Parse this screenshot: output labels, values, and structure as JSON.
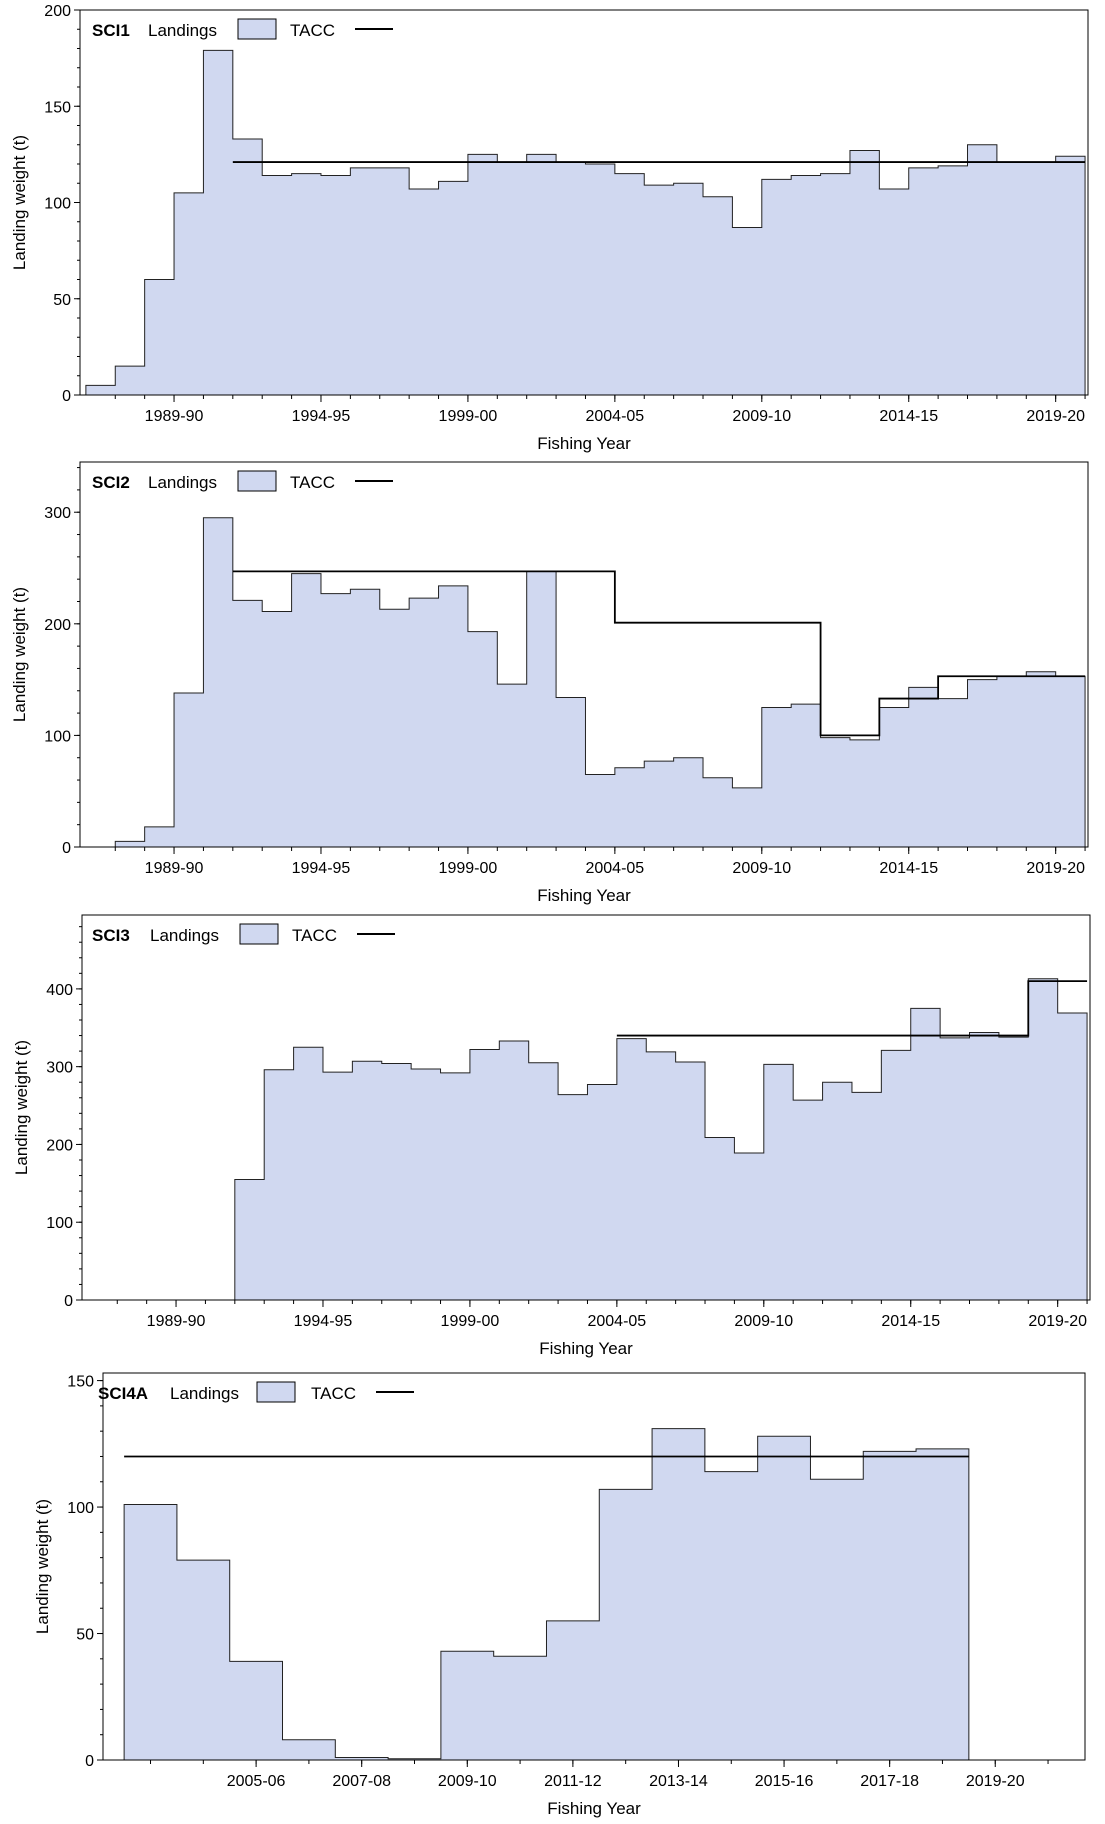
{
  "chart_data": [
    {
      "type": "area",
      "title": "SCI1",
      "xlabel": "Fishing Year",
      "ylabel": "Landing weight (t)",
      "ylim": [
        0,
        200
      ],
      "xlim": [
        1986.3,
        2020.6
      ],
      "yticks": [
        0,
        50,
        100,
        150,
        200
      ],
      "xticks": [
        {
          "pos": 1989.5,
          "label": "1989-90"
        },
        {
          "pos": 1994.5,
          "label": "1994-95"
        },
        {
          "pos": 1999.5,
          "label": "1999-00"
        },
        {
          "pos": 2004.5,
          "label": "2004-05"
        },
        {
          "pos": 2009.5,
          "label": "2009-10"
        },
        {
          "pos": 2014.5,
          "label": "2014-15"
        },
        {
          "pos": 2019.5,
          "label": "2019-20"
        }
      ],
      "legend": [
        {
          "label": "Landings",
          "kind": "fill"
        },
        {
          "label": "TACC",
          "kind": "line"
        }
      ],
      "colors": {
        "landings_fill": "#d0d8f0",
        "tacc_line": "#000000"
      },
      "x_start": 1986.5,
      "landings": [
        5,
        15,
        60,
        105,
        179,
        133,
        114,
        115,
        114,
        118,
        118,
        107,
        111,
        125,
        121,
        125,
        121,
        120,
        115,
        109,
        110,
        103,
        87,
        112,
        114,
        115,
        127,
        107,
        118,
        119,
        130,
        121,
        121,
        124
      ],
      "tacc": [
        {
          "x0": 1991.5,
          "x1": 2020.5,
          "y": 121
        }
      ]
    },
    {
      "type": "area",
      "title": "SCI2",
      "xlabel": "Fishing Year",
      "ylabel": "Landing weight (t)",
      "ylim": [
        0,
        345
      ],
      "xlim": [
        1986.3,
        2020.6
      ],
      "yticks": [
        0,
        100,
        200,
        300
      ],
      "xticks": [
        {
          "pos": 1989.5,
          "label": "1989-90"
        },
        {
          "pos": 1994.5,
          "label": "1994-95"
        },
        {
          "pos": 1999.5,
          "label": "1999-00"
        },
        {
          "pos": 2004.5,
          "label": "2004-05"
        },
        {
          "pos": 2009.5,
          "label": "2009-10"
        },
        {
          "pos": 2014.5,
          "label": "2014-15"
        },
        {
          "pos": 2019.5,
          "label": "2019-20"
        }
      ],
      "legend": [
        {
          "label": "Landings",
          "kind": "fill"
        },
        {
          "label": "TACC",
          "kind": "line"
        }
      ],
      "colors": {
        "landings_fill": "#d0d8f0",
        "tacc_line": "#000000"
      },
      "x_start": 1987.5,
      "landings": [
        5,
        18,
        138,
        295,
        221,
        211,
        245,
        227,
        231,
        213,
        223,
        234,
        193,
        146,
        247,
        134,
        65,
        71,
        77,
        80,
        62,
        53,
        125,
        128,
        98,
        96,
        125,
        143,
        133,
        150,
        153,
        157,
        153
      ],
      "tacc": [
        {
          "x0": 1991.5,
          "x1": 2004.5,
          "y": 247
        },
        {
          "x0": 2004.5,
          "x1": 2011.5,
          "y": 201
        },
        {
          "x0": 2011.5,
          "x1": 2013.5,
          "y": 100
        },
        {
          "x0": 2013.5,
          "x1": 2015.5,
          "y": 133
        },
        {
          "x0": 2015.5,
          "x1": 2020.5,
          "y": 153
        }
      ]
    },
    {
      "type": "area",
      "title": "SCI3",
      "xlabel": "Fishing Year",
      "ylabel": "Landing weight (t)",
      "ylim": [
        0,
        495
      ],
      "xlim": [
        1986.3,
        2020.6
      ],
      "yticks": [
        0,
        100,
        200,
        300,
        400
      ],
      "xticks": [
        {
          "pos": 1989.5,
          "label": "1989-90"
        },
        {
          "pos": 1994.5,
          "label": "1994-95"
        },
        {
          "pos": 1999.5,
          "label": "1999-00"
        },
        {
          "pos": 2004.5,
          "label": "2004-05"
        },
        {
          "pos": 2009.5,
          "label": "2009-10"
        },
        {
          "pos": 2014.5,
          "label": "2014-15"
        },
        {
          "pos": 2019.5,
          "label": "2019-20"
        }
      ],
      "legend": [
        {
          "label": "Landings",
          "kind": "fill"
        },
        {
          "label": "TACC",
          "kind": "line"
        }
      ],
      "colors": {
        "landings_fill": "#d0d8f0",
        "tacc_line": "#000000"
      },
      "x_start": 1991.5,
      "landings": [
        155,
        296,
        325,
        293,
        307,
        304,
        297,
        292,
        322,
        333,
        305,
        264,
        277,
        336,
        319,
        306,
        209,
        189,
        303,
        257,
        280,
        267,
        321,
        375,
        337,
        344,
        338,
        413,
        369
      ],
      "tacc": [
        {
          "x0": 2004.5,
          "x1": 2018.5,
          "y": 340
        },
        {
          "x0": 2018.5,
          "x1": 2020.5,
          "y": 410
        }
      ]
    },
    {
      "type": "area",
      "title": "SCI4A",
      "xlabel": "Fishing Year",
      "ylabel": "Landing weight (t)",
      "ylim": [
        0,
        153
      ],
      "xlim": [
        2002.6,
        2021.2
      ],
      "yticks": [
        0,
        50,
        100,
        150
      ],
      "xticks": [
        {
          "pos": 2005.5,
          "label": "2005-06"
        },
        {
          "pos": 2007.5,
          "label": "2007-08"
        },
        {
          "pos": 2009.5,
          "label": "2009-10"
        },
        {
          "pos": 2011.5,
          "label": "2011-12"
        },
        {
          "pos": 2013.5,
          "label": "2013-14"
        },
        {
          "pos": 2015.5,
          "label": "2015-16"
        },
        {
          "pos": 2017.5,
          "label": "2017-18"
        },
        {
          "pos": 2019.5,
          "label": "2019-20"
        }
      ],
      "legend": [
        {
          "label": "Landings",
          "kind": "fill"
        },
        {
          "label": "TACC",
          "kind": "line"
        }
      ],
      "colors": {
        "landings_fill": "#d0d8f0",
        "tacc_line": "#000000"
      },
      "x_start": 2003.0,
      "landings": [
        101,
        79,
        39,
        8,
        1,
        0.5,
        43,
        41,
        55,
        107,
        131,
        114,
        128,
        111,
        122,
        123
      ],
      "tacc": [
        {
          "x0": 2003.0,
          "x1": 2019.0,
          "y": 120
        }
      ]
    }
  ]
}
